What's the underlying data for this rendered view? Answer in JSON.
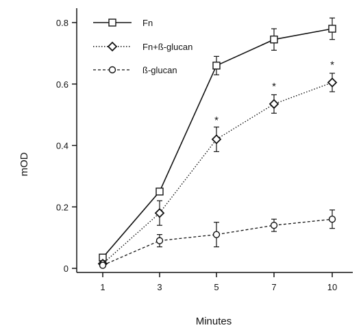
{
  "chart_data": {
    "type": "line",
    "title": "",
    "xlabel": "Minutes",
    "ylabel": "mOD",
    "categories": [
      "1",
      "3",
      "5",
      "7",
      "10"
    ],
    "yticks": [
      "0",
      "0.2",
      "0.4",
      "0.6",
      "0.8"
    ],
    "ylim": [
      0,
      0.85
    ],
    "grid": false,
    "legend_position": "top-left",
    "series": [
      {
        "name": "Fn",
        "marker": "square",
        "line_style": "solid",
        "color": "#111111",
        "values": [
          0.035,
          0.25,
          0.66,
          0.745,
          0.78
        ],
        "error": [
          0.01,
          0.01,
          0.03,
          0.035,
          0.035
        ]
      },
      {
        "name": "Fn+ß-glucan",
        "marker": "diamond",
        "line_style": "dotted",
        "color": "#111111",
        "values": [
          0.015,
          0.18,
          0.42,
          0.535,
          0.605
        ],
        "error": [
          0.01,
          0.04,
          0.04,
          0.03,
          0.03
        ]
      },
      {
        "name": "ß-glucan",
        "marker": "circle",
        "line_style": "dashed",
        "color": "#111111",
        "values": [
          0.01,
          0.09,
          0.11,
          0.14,
          0.16
        ],
        "error": [
          0.005,
          0.02,
          0.04,
          0.02,
          0.03
        ]
      }
    ],
    "annotations": [
      {
        "text": "*",
        "category": "5",
        "y": 0.485
      },
      {
        "text": "*",
        "category": "7",
        "y": 0.595
      },
      {
        "text": "*",
        "category": "10",
        "y": 0.665
      }
    ]
  }
}
